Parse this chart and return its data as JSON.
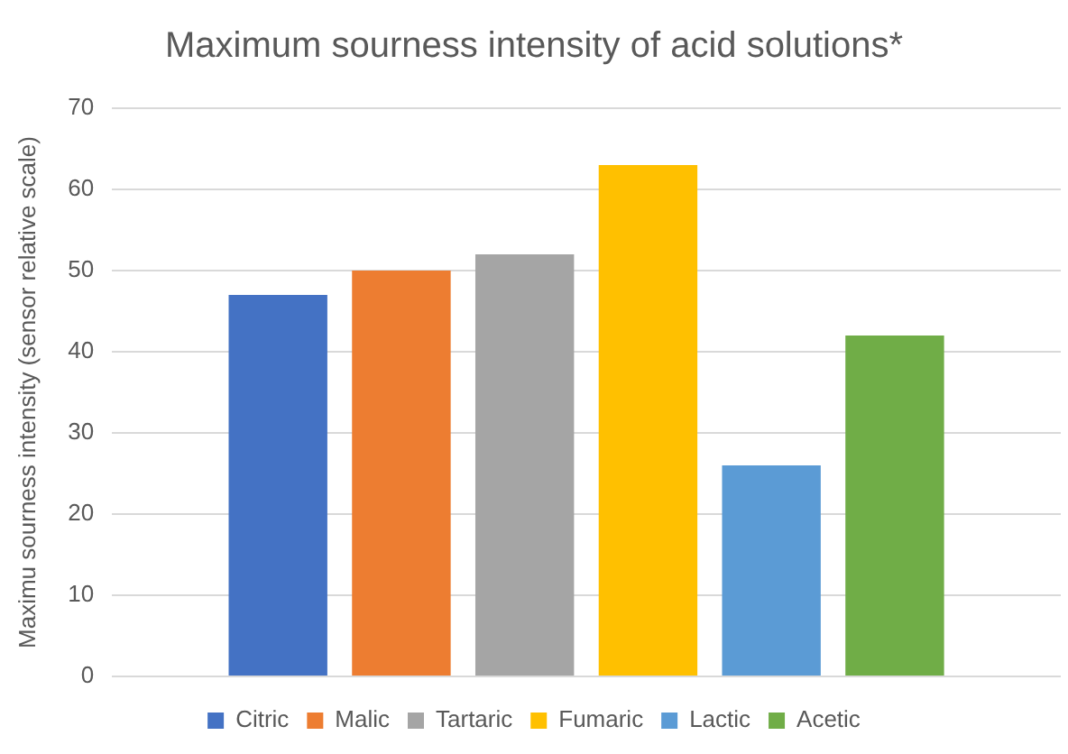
{
  "chart_data": {
    "type": "bar",
    "title": "Maximum sourness intensity of acid solutions*",
    "ylabel": "Maximu sourness intensity (sensor relative scale)",
    "categories": [
      null
    ],
    "series": [
      {
        "name": "Citric",
        "color": "#4472c4",
        "values": [
          47
        ]
      },
      {
        "name": "Malic",
        "color": "#ed7d31",
        "values": [
          50
        ]
      },
      {
        "name": "Tartaric",
        "color": "#a5a5a5",
        "values": [
          52
        ]
      },
      {
        "name": "Fumaric",
        "color": "#ffc000",
        "values": [
          63
        ]
      },
      {
        "name": "Lactic",
        "color": "#5b9bd5",
        "values": [
          26
        ]
      },
      {
        "name": "Acetic",
        "color": "#70ad47",
        "values": [
          42
        ]
      }
    ],
    "ylim": [
      0,
      70
    ],
    "yticks": [
      0,
      10,
      20,
      30,
      40,
      50,
      60,
      70
    ],
    "grid": "y",
    "legend": "bottom"
  }
}
